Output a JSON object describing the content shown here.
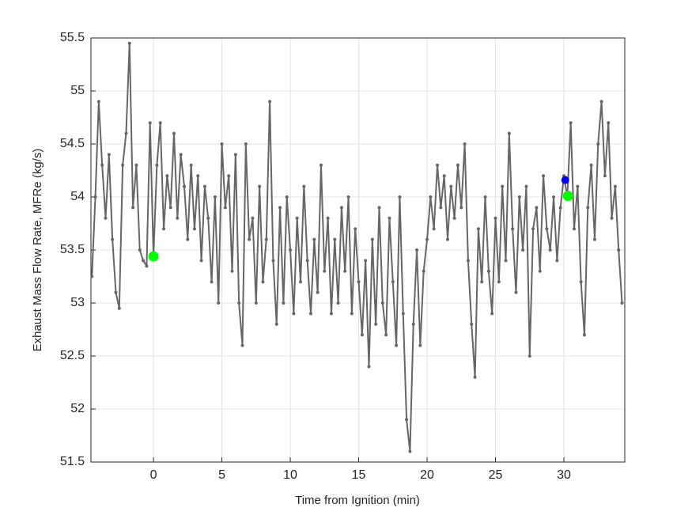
{
  "chart_data": {
    "type": "line",
    "xlabel": "Time from Ignition (min)",
    "ylabel": "Exhaust Mass Flow Rate, MFRe (kg/s)",
    "xlim": [
      -4.57,
      34.45
    ],
    "ylim": [
      51.5,
      55.5
    ],
    "xticks": [
      0,
      5,
      10,
      15,
      20,
      25,
      30
    ],
    "yticks": [
      51.5,
      52,
      52.5,
      53,
      53.5,
      54,
      54.5,
      55,
      55.5
    ],
    "grid": true,
    "series": [
      {
        "color": "#666666",
        "x": [
          -4.5,
          -4.25,
          -4,
          -3.75,
          -3.5,
          -3.25,
          -3,
          -2.75,
          -2.5,
          -2.25,
          -2,
          -1.75,
          -1.5,
          -1.25,
          -1,
          -0.75,
          -0.5,
          -0.25,
          0,
          0.25,
          0.5,
          0.75,
          1,
          1.25,
          1.5,
          1.75,
          2,
          2.25,
          2.5,
          2.75,
          3,
          3.25,
          3.5,
          3.75,
          4,
          4.25,
          4.5,
          4.75,
          5,
          5.25,
          5.5,
          5.75,
          6,
          6.25,
          6.5,
          6.75,
          7,
          7.25,
          7.5,
          7.75,
          8,
          8.25,
          8.5,
          8.75,
          9,
          9.25,
          9.5,
          9.75,
          10,
          10.25,
          10.5,
          10.75,
          11,
          11.25,
          11.5,
          11.75,
          12,
          12.25,
          12.5,
          12.75,
          13,
          13.25,
          13.5,
          13.75,
          14,
          14.25,
          14.5,
          14.75,
          15,
          15.25,
          15.5,
          15.75,
          16,
          16.25,
          16.5,
          16.75,
          17,
          17.25,
          17.5,
          17.75,
          18,
          18.25,
          18.5,
          18.75,
          19,
          19.25,
          19.5,
          19.75,
          20,
          20.25,
          20.5,
          20.75,
          21,
          21.25,
          21.5,
          21.75,
          22,
          22.25,
          22.5,
          22.75,
          23,
          23.25,
          23.5,
          23.75,
          24,
          24.25,
          24.5,
          24.75,
          25,
          25.25,
          25.5,
          25.75,
          26,
          26.25,
          26.5,
          26.75,
          27,
          27.25,
          27.5,
          27.75,
          28,
          28.25,
          28.5,
          28.75,
          29,
          29.25,
          29.5,
          29.75,
          30,
          30.25,
          30.5,
          30.75,
          31,
          31.25,
          31.5,
          31.75,
          32,
          32.25,
          32.5,
          32.75,
          33,
          33.25,
          33.5,
          33.75,
          34,
          34.25
        ],
        "values": [
          53.25,
          54.0,
          54.9,
          54.3,
          53.8,
          54.4,
          53.6,
          53.1,
          52.95,
          54.3,
          54.6,
          55.45,
          53.9,
          54.3,
          53.5,
          53.4,
          53.35,
          54.7,
          53.44,
          54.3,
          54.7,
          53.7,
          54.2,
          53.9,
          54.6,
          53.8,
          54.4,
          54.1,
          53.6,
          54.3,
          53.7,
          54.2,
          53.4,
          54.1,
          53.8,
          53.2,
          54.0,
          53.0,
          54.5,
          53.9,
          54.2,
          53.3,
          54.4,
          53.0,
          52.6,
          54.5,
          53.6,
          53.8,
          53.0,
          54.1,
          53.2,
          53.6,
          54.9,
          53.4,
          52.8,
          53.9,
          53.0,
          54.0,
          53.5,
          52.9,
          53.8,
          53.2,
          54.1,
          53.4,
          52.9,
          53.6,
          53.1,
          54.3,
          53.3,
          53.8,
          52.9,
          53.6,
          53.0,
          53.9,
          53.3,
          54.0,
          52.9,
          53.7,
          53.2,
          52.7,
          53.4,
          52.4,
          53.6,
          52.8,
          53.9,
          53.0,
          52.7,
          53.8,
          53.2,
          52.6,
          54.0,
          52.9,
          51.9,
          51.6,
          52.8,
          53.5,
          52.6,
          53.3,
          53.6,
          54.0,
          53.7,
          54.3,
          53.9,
          54.2,
          53.6,
          54.1,
          53.8,
          54.3,
          53.9,
          54.5,
          53.4,
          52.8,
          52.3,
          53.7,
          53.2,
          54.0,
          53.3,
          52.9,
          53.8,
          53.2,
          54.1,
          53.4,
          54.6,
          53.7,
          53.1,
          54.0,
          53.5,
          54.1,
          52.5,
          53.7,
          53.9,
          53.3,
          54.2,
          53.7,
          53.5,
          54.0,
          53.4,
          53.9,
          54.2,
          54.0,
          54.7,
          53.7,
          54.1,
          53.2,
          52.7,
          53.9,
          54.3,
          53.6,
          54.5,
          54.9,
          54.2,
          54.7,
          53.8,
          54.1,
          53.5,
          53.0
        ]
      }
    ],
    "highlights": [
      {
        "x": 0,
        "y": 53.44,
        "color": "#00ff00"
      },
      {
        "x": 30.1,
        "y": 54.16,
        "color": "#0000ff"
      },
      {
        "x": 30.3,
        "y": 54.01,
        "color": "#00ff00"
      }
    ]
  }
}
